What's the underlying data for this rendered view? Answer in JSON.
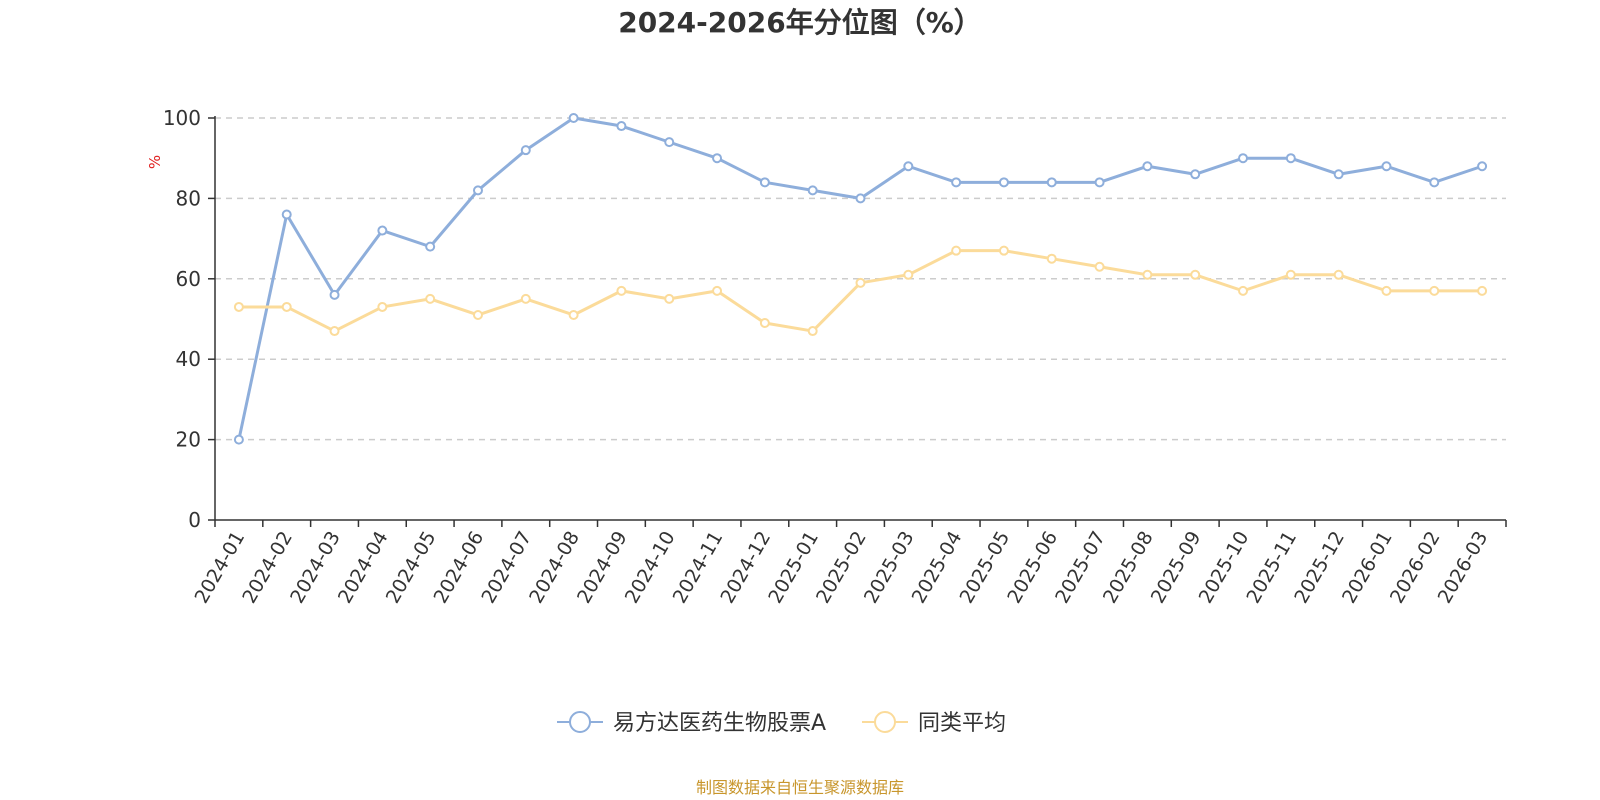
{
  "chart_data": {
    "type": "line",
    "title": "2024-2026年分位图（%）",
    "ylabel": "%",
    "xlabel": "",
    "ylim": [
      0,
      100
    ],
    "yticks": [
      0,
      20,
      40,
      60,
      80,
      100
    ],
    "grid": true,
    "legend_position": "bottom",
    "categories": [
      "2024-01",
      "2024-02",
      "2024-03",
      "2024-04",
      "2024-05",
      "2024-06",
      "2024-07",
      "2024-08",
      "2024-09",
      "2024-10",
      "2024-11",
      "2024-12",
      "2025-01",
      "2025-02",
      "2025-03",
      "2025-04",
      "2025-05",
      "2025-06",
      "2025-07",
      "2025-08",
      "2025-09",
      "2025-10",
      "2025-11",
      "2025-12",
      "2026-01",
      "2026-02",
      "2026-03"
    ],
    "series": [
      {
        "name": "易方达医药生物股票A",
        "color": "#8eaedb",
        "values": [
          20,
          76,
          56,
          72,
          68,
          82,
          92,
          100,
          98,
          94,
          90,
          84,
          82,
          80,
          88,
          84,
          84,
          84,
          84,
          88,
          86,
          90,
          90,
          86,
          88,
          84,
          88
        ]
      },
      {
        "name": "同类平均",
        "color": "#fbdb9a",
        "values": [
          53,
          53,
          47,
          53,
          55,
          51,
          55,
          51,
          57,
          55,
          57,
          49,
          47,
          59,
          61,
          67,
          67,
          65,
          63,
          61,
          61,
          57,
          61,
          61,
          57,
          57,
          57
        ]
      }
    ]
  },
  "source_text": "制图数据来自恒生聚源数据库",
  "colors": {
    "ylabel": "#e02020",
    "source": "#c8962c",
    "grid": "#cccccc",
    "axis": "#333333"
  }
}
